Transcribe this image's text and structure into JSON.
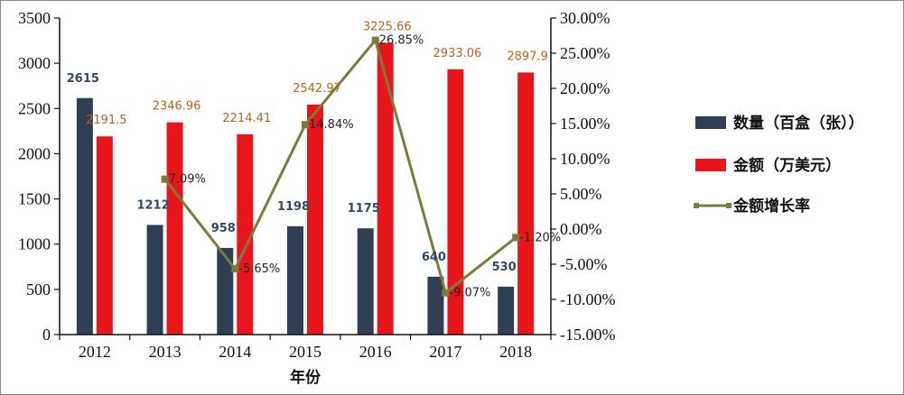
{
  "chart_data": {
    "type": "bar",
    "categories": [
      "2012",
      "2013",
      "2014",
      "2015",
      "2016",
      "2017",
      "2018"
    ],
    "xlabel": "年份",
    "ylim": [
      0,
      3500
    ],
    "yticks": [
      0,
      500,
      1000,
      1500,
      2000,
      2500,
      3000,
      3500
    ],
    "y2lim": [
      -15,
      30
    ],
    "y2ticks": [
      "-15.00%",
      "-10.00%",
      "-5.00%",
      "0.00%",
      "5.00%",
      "10.00%",
      "15.00%",
      "20.00%",
      "25.00%",
      "30.00%"
    ],
    "y2tick_values": [
      -15,
      -10,
      -5,
      0,
      5,
      10,
      15,
      20,
      25,
      30
    ],
    "legend_position": "right",
    "series": [
      {
        "name": "数量（百盒（张））",
        "kind": "bar",
        "color": "#2f3e52",
        "values": [
          2615,
          1212,
          958,
          1198,
          1175,
          640,
          530
        ],
        "labels": [
          "2615",
          "1212",
          "958",
          "1198",
          "1175",
          "640",
          "530"
        ]
      },
      {
        "name": "金额（万美元）",
        "kind": "bar",
        "color": "#e8161b",
        "values": [
          2191.5,
          2346.96,
          2214.41,
          2542.97,
          3225.66,
          2933.06,
          2897.9
        ],
        "labels": [
          "2191.5",
          "2346.96",
          "2214.41",
          "2542.97",
          "3225.66",
          "2933.06",
          "2897.9"
        ]
      },
      {
        "name": "金额增长率",
        "kind": "line",
        "axis": "secondary",
        "color": "#7d7a3e",
        "x": [
          "2013",
          "2014",
          "2015",
          "2016",
          "2017",
          "2018"
        ],
        "values": [
          7.09,
          -5.65,
          14.84,
          26.85,
          -9.07,
          -1.2
        ],
        "labels": [
          "7.09%",
          "-5.65%",
          "14.84%",
          "26.85%",
          "-9.07%",
          "-1.20%"
        ]
      }
    ]
  }
}
